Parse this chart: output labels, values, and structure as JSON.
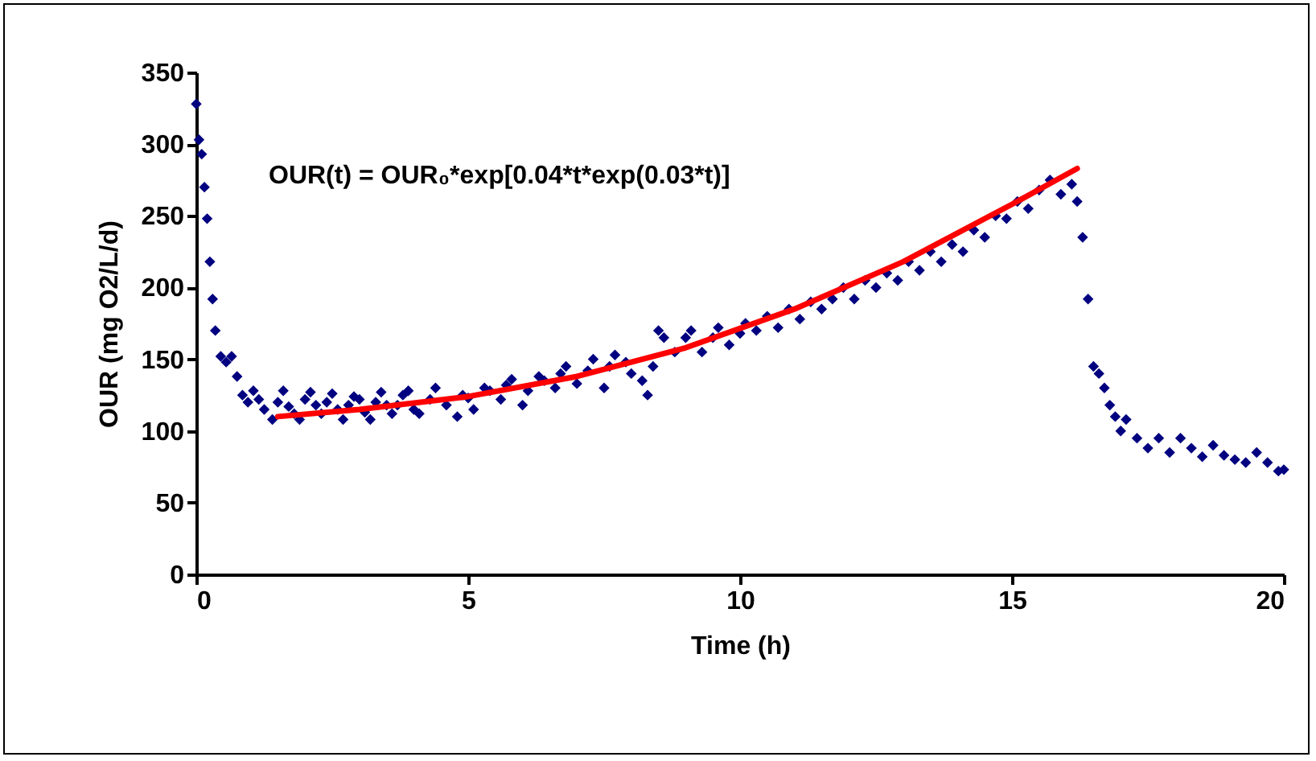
{
  "chart_data": {
    "type": "scatter",
    "xlabel": "Time (h)",
    "ylabel": "OUR (mg O2/L/d)",
    "annotations": [
      "OUR(t) = OUR₀*exp[0.04*t*exp(0.03*t)]"
    ],
    "xlim": [
      0,
      20
    ],
    "xticks": [
      0,
      5,
      10,
      15,
      20
    ],
    "ylim": [
      0,
      350
    ],
    "yticks": [
      0,
      50,
      100,
      150,
      200,
      250,
      300,
      350
    ],
    "grid": false,
    "series": [
      {
        "color": "#000080",
        "marker": "diamond",
        "x": [
          0,
          0.05,
          0.1,
          0.15,
          0.2,
          0.25,
          0.3,
          0.35,
          0.45,
          0.55,
          0.65,
          0.75,
          0.85,
          0.95,
          1.05,
          1.15,
          1.25,
          1.4,
          1.5,
          1.6,
          1.7,
          1.8,
          1.9,
          2.0,
          2.1,
          2.2,
          2.3,
          2.4,
          2.5,
          2.6,
          2.7,
          2.8,
          2.9,
          3.0,
          3.1,
          3.2,
          3.3,
          3.4,
          3.5,
          3.6,
          3.7,
          3.8,
          3.9,
          4.0,
          4.1,
          4.3,
          4.4,
          4.6,
          4.8,
          4.9,
          5.0,
          5.1,
          5.3,
          5.4,
          5.6,
          5.7,
          5.8,
          6.0,
          6.1,
          6.3,
          6.4,
          6.6,
          6.7,
          6.8,
          7.0,
          7.2,
          7.3,
          7.5,
          7.6,
          7.7,
          7.9,
          8.0,
          8.2,
          8.3,
          8.4,
          8.5,
          8.6,
          8.8,
          9.0,
          9.1,
          9.3,
          9.5,
          9.6,
          9.8,
          10.0,
          10.1,
          10.3,
          10.5,
          10.7,
          10.9,
          11.1,
          11.3,
          11.5,
          11.7,
          11.9,
          12.1,
          12.3,
          12.5,
          12.7,
          12.9,
          13.1,
          13.3,
          13.5,
          13.7,
          13.9,
          14.1,
          14.3,
          14.5,
          14.7,
          14.9,
          15.1,
          15.3,
          15.5,
          15.7,
          15.9,
          16.1,
          16.2,
          16.3,
          16.4,
          16.5,
          16.6,
          16.7,
          16.8,
          16.9,
          17.0,
          17.1,
          17.3,
          17.5,
          17.7,
          17.9,
          18.1,
          18.3,
          18.5,
          18.7,
          18.9,
          19.1,
          19.3,
          19.5,
          19.7,
          19.9,
          20.0
        ],
        "values": [
          328,
          303,
          293,
          270,
          248,
          218,
          192,
          170,
          152,
          148,
          152,
          138,
          125,
          120,
          128,
          122,
          115,
          108,
          120,
          128,
          117,
          112,
          108,
          122,
          127,
          118,
          112,
          120,
          126,
          115,
          108,
          118,
          124,
          122,
          113,
          108,
          120,
          127,
          118,
          112,
          118,
          125,
          128,
          115,
          112,
          122,
          130,
          118,
          110,
          125,
          123,
          115,
          130,
          128,
          122,
          132,
          136,
          118,
          128,
          138,
          135,
          130,
          140,
          145,
          133,
          142,
          150,
          130,
          145,
          153,
          148,
          140,
          135,
          125,
          145,
          170,
          165,
          155,
          165,
          170,
          155,
          165,
          172,
          160,
          168,
          175,
          170,
          180,
          172,
          185,
          178,
          190,
          185,
          192,
          200,
          192,
          205,
          200,
          210,
          205,
          218,
          212,
          225,
          218,
          230,
          225,
          240,
          235,
          250,
          248,
          260,
          255,
          268,
          275,
          265,
          272,
          260,
          235,
          192,
          145,
          140,
          130,
          118,
          110,
          100,
          108,
          95,
          88,
          95,
          85,
          95,
          88,
          82,
          90,
          83,
          80,
          78,
          85,
          78,
          72,
          73
        ]
      },
      {
        "type": "line",
        "marker": "none",
        "color": "#ff0000",
        "x": [
          1.5,
          3,
          5,
          7,
          9,
          11,
          13,
          15,
          16.2
        ],
        "values": [
          110,
          115,
          124,
          138,
          158,
          185,
          218,
          258,
          283
        ]
      }
    ]
  }
}
